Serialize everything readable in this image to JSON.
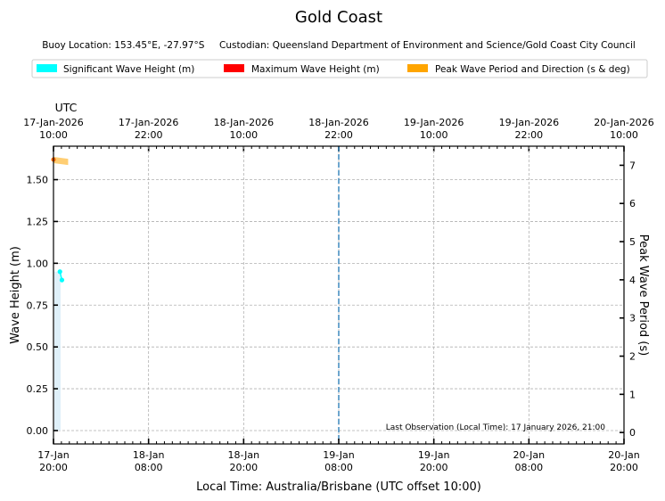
{
  "title": "Gold Coast",
  "subtitle": "Buoy Location: 153.45°E, -27.97°S     Custodian: Queensland Department of Environment and Science/Gold Coast City Council",
  "legend": [
    {
      "label": "Significant Wave Height (m)",
      "color": "#00ffff"
    },
    {
      "label": "Maximum Wave Height (m)",
      "color": "#ff0000"
    },
    {
      "label": "Peak Wave Period and Direction (s & deg)",
      "color": "#ffa500"
    }
  ],
  "top_axis": {
    "label": "UTC",
    "ticks": [
      {
        "date": "17-Jan-2026",
        "time": "10:00"
      },
      {
        "date": "17-Jan-2026",
        "time": "22:00"
      },
      {
        "date": "18-Jan-2026",
        "time": "10:00"
      },
      {
        "date": "18-Jan-2026",
        "time": "22:00"
      },
      {
        "date": "19-Jan-2026",
        "time": "10:00"
      },
      {
        "date": "19-Jan-2026",
        "time": "22:00"
      },
      {
        "date": "20-Jan-2026",
        "time": "10:00"
      }
    ]
  },
  "bottom_axis": {
    "label": "Local Time: Australia/Brisbane (UTC offset 10:00)",
    "ticks": [
      {
        "date": "17-Jan",
        "time": "20:00"
      },
      {
        "date": "18-Jan",
        "time": "08:00"
      },
      {
        "date": "18-Jan",
        "time": "20:00"
      },
      {
        "date": "19-Jan",
        "time": "08:00"
      },
      {
        "date": "19-Jan",
        "time": "20:00"
      },
      {
        "date": "20-Jan",
        "time": "08:00"
      },
      {
        "date": "20-Jan",
        "time": "20:00"
      }
    ]
  },
  "annotation": "Last Observation (Local Time): 17 January 2026, 21:00",
  "chart_data": {
    "type": "line",
    "x_range_hours": [
      0,
      72
    ],
    "x_start_local": "17-Jan 20:00",
    "ylabel_left": "Wave Height (m)",
    "ylim_left": [
      -0.08,
      1.7
    ],
    "yticks_left": [
      "0.00",
      "0.25",
      "0.50",
      "0.75",
      "1.00",
      "1.25",
      "1.50"
    ],
    "ylabel_right": "Peak Wave Period (s)",
    "ylim_right": [
      -0.3,
      7.5
    ],
    "yticks_right": [
      "0",
      "1",
      "2",
      "3",
      "4",
      "5",
      "6",
      "7"
    ],
    "grid": true,
    "vline_hours": 36,
    "series": [
      {
        "name": "Significant Wave Height (m)",
        "color": "#00ffff",
        "points": [
          {
            "h": 0.25,
            "v": 0.95
          },
          {
            "h": 0.5,
            "v": 0.9
          }
        ]
      },
      {
        "name": "Maximum Wave Height (m)",
        "color": "#ff0000",
        "points": []
      },
      {
        "name": "Peak Wave Period and Direction (s & deg)",
        "color": "#ffa500",
        "points": [
          {
            "h": 0.0,
            "v": 7.15
          },
          {
            "h": 0.5,
            "v": 7.1
          }
        ]
      }
    ]
  }
}
